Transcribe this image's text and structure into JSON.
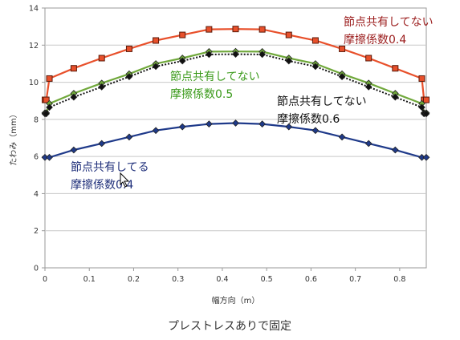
{
  "chart_data": {
    "type": "line",
    "caption": "プレストレスありで固定",
    "xlabel": "幅方向（m）",
    "ylabel": "たわみ（mm）",
    "xlim": [
      0,
      0.86
    ],
    "ylim": [
      0,
      14
    ],
    "x_ticks": [
      "0",
      "0.1",
      "0.2",
      "0.3",
      "0.4",
      "0.5",
      "0.6",
      "0.7",
      "0.8"
    ],
    "y_ticks": [
      "0",
      "2",
      "4",
      "6",
      "8",
      "10",
      "12",
      "14"
    ],
    "grid": "horizontal",
    "series": [
      {
        "color": "#e8502b",
        "marker": "square",
        "points": [
          [
            0,
            9.05
          ],
          [
            0.003,
            9.05
          ],
          [
            0.01,
            10.2
          ],
          [
            0.065,
            10.75
          ],
          [
            0.128,
            11.3
          ],
          [
            0.19,
            11.8
          ],
          [
            0.25,
            12.25
          ],
          [
            0.31,
            12.55
          ],
          [
            0.37,
            12.85
          ],
          [
            0.43,
            12.87
          ],
          [
            0.49,
            12.85
          ],
          [
            0.55,
            12.55
          ],
          [
            0.61,
            12.25
          ],
          [
            0.67,
            11.8
          ],
          [
            0.73,
            11.3
          ],
          [
            0.79,
            10.75
          ],
          [
            0.85,
            10.2
          ],
          [
            0.855,
            9.05
          ],
          [
            0.86,
            9.05
          ]
        ]
      },
      {
        "color": "#70a83b",
        "marker": "diamond",
        "points": [
          [
            0,
            8.35
          ],
          [
            0.003,
            8.35
          ],
          [
            0.01,
            8.85
          ],
          [
            0.065,
            9.4
          ],
          [
            0.128,
            9.95
          ],
          [
            0.19,
            10.45
          ],
          [
            0.25,
            11.0
          ],
          [
            0.31,
            11.3
          ],
          [
            0.37,
            11.65
          ],
          [
            0.43,
            11.66
          ],
          [
            0.49,
            11.65
          ],
          [
            0.55,
            11.3
          ],
          [
            0.61,
            11.0
          ],
          [
            0.67,
            10.45
          ],
          [
            0.73,
            9.95
          ],
          [
            0.79,
            9.4
          ],
          [
            0.85,
            8.85
          ],
          [
            0.855,
            8.35
          ],
          [
            0.86,
            8.35
          ]
        ]
      },
      {
        "color": "#111111",
        "marker": "diamond",
        "dashed": true,
        "points": [
          [
            0,
            8.3
          ],
          [
            0.003,
            8.3
          ],
          [
            0.01,
            8.65
          ],
          [
            0.065,
            9.2
          ],
          [
            0.128,
            9.75
          ],
          [
            0.19,
            10.3
          ],
          [
            0.25,
            10.85
          ],
          [
            0.31,
            11.15
          ],
          [
            0.37,
            11.5
          ],
          [
            0.43,
            11.51
          ],
          [
            0.49,
            11.5
          ],
          [
            0.55,
            11.15
          ],
          [
            0.61,
            10.85
          ],
          [
            0.67,
            10.3
          ],
          [
            0.73,
            9.75
          ],
          [
            0.79,
            9.2
          ],
          [
            0.85,
            8.65
          ],
          [
            0.855,
            8.3
          ],
          [
            0.86,
            8.3
          ]
        ]
      },
      {
        "color": "#1f3a8a",
        "marker": "diamond",
        "points": [
          [
            0,
            5.95
          ],
          [
            0.01,
            5.95
          ],
          [
            0.065,
            6.35
          ],
          [
            0.128,
            6.7
          ],
          [
            0.19,
            7.05
          ],
          [
            0.25,
            7.4
          ],
          [
            0.31,
            7.6
          ],
          [
            0.37,
            7.75
          ],
          [
            0.43,
            7.8
          ],
          [
            0.49,
            7.75
          ],
          [
            0.55,
            7.6
          ],
          [
            0.61,
            7.4
          ],
          [
            0.67,
            7.05
          ],
          [
            0.73,
            6.7
          ],
          [
            0.79,
            6.35
          ],
          [
            0.85,
            5.95
          ],
          [
            0.86,
            5.95
          ]
        ]
      }
    ],
    "annotations": [
      {
        "line1": "節点共有してない",
        "line2": "摩擦係数0.4",
        "color": "#9b1d1d"
      },
      {
        "line1": "節点共有してない",
        "line2": "摩擦係数0.5",
        "color": "#3a9a1a"
      },
      {
        "line1": "節点共有してない",
        "line2": "摩擦係数0.6",
        "color": "#111111"
      },
      {
        "line1": "節点共有してる",
        "line2": "摩擦係数0.4",
        "color": "#1f2f7a"
      }
    ]
  }
}
